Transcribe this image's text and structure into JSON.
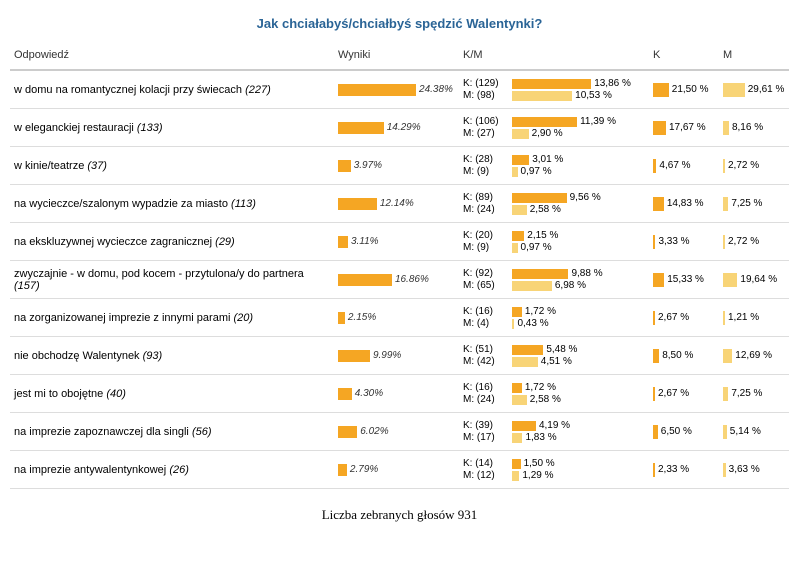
{
  "title": "Jak chciałabyś/chciałbyś spędzić Walentynki?",
  "headers": {
    "answer": "Odpowiedź",
    "results": "Wyniki",
    "km": "K/M",
    "k": "K",
    "m": "M"
  },
  "colors": {
    "bar_main": "#f5a623",
    "bar_k": "#f5a623",
    "bar_m": "#f8d477",
    "title_color": "#2a6496"
  },
  "scale": {
    "main_max": 25,
    "km_max": 14,
    "mini_max": 30
  },
  "rows": [
    {
      "label": "w domu na romantycznej kolacji przy świecach",
      "count": 227,
      "pct": 24.38,
      "k_n": 129,
      "k_pct": 13.86,
      "m_n": 98,
      "m_pct": 10.53,
      "k_col": 21.5,
      "m_col": 29.61
    },
    {
      "label": "w eleganckiej restauracji",
      "count": 133,
      "pct": 14.29,
      "k_n": 106,
      "k_pct": 11.39,
      "m_n": 27,
      "m_pct": 2.9,
      "k_col": 17.67,
      "m_col": 8.16
    },
    {
      "label": "w kinie/teatrze",
      "count": 37,
      "pct": 3.97,
      "k_n": 28,
      "k_pct": 3.01,
      "m_n": 9,
      "m_pct": 0.97,
      "k_col": 4.67,
      "m_col": 2.72
    },
    {
      "label": "na wycieczce/szalonym wypadzie za miasto",
      "count": 113,
      "pct": 12.14,
      "k_n": 89,
      "k_pct": 9.56,
      "m_n": 24,
      "m_pct": 2.58,
      "k_col": 14.83,
      "m_col": 7.25
    },
    {
      "label": "na ekskluzywnej wycieczce zagranicznej",
      "count": 29,
      "pct": 3.11,
      "k_n": 20,
      "k_pct": 2.15,
      "m_n": 9,
      "m_pct": 0.97,
      "k_col": 3.33,
      "m_col": 2.72
    },
    {
      "label": "zwyczajnie - w domu, pod kocem - przytulona/y do partnera",
      "count": 157,
      "pct": 16.86,
      "k_n": 92,
      "k_pct": 9.88,
      "m_n": 65,
      "m_pct": 6.98,
      "k_col": 15.33,
      "m_col": 19.64
    },
    {
      "label": "na zorganizowanej imprezie z innymi parami",
      "count": 20,
      "pct": 2.15,
      "k_n": 16,
      "k_pct": 1.72,
      "m_n": 4,
      "m_pct": 0.43,
      "k_col": 2.67,
      "m_col": 1.21
    },
    {
      "label": "nie obchodzę Walentynek",
      "count": 93,
      "pct": 9.99,
      "k_n": 51,
      "k_pct": 5.48,
      "m_n": 42,
      "m_pct": 4.51,
      "k_col": 8.5,
      "m_col": 12.69
    },
    {
      "label": "jest mi to obojętne",
      "count": 40,
      "pct": 4.3,
      "k_n": 16,
      "k_pct": 1.72,
      "m_n": 24,
      "m_pct": 2.58,
      "k_col": 2.67,
      "m_col": 7.25
    },
    {
      "label": "na imprezie zapoznawczej dla singli",
      "count": 56,
      "pct": 6.02,
      "k_n": 39,
      "k_pct": 4.19,
      "m_n": 17,
      "m_pct": 1.83,
      "k_col": 6.5,
      "m_col": 5.14
    },
    {
      "label": "na imprezie antywalentynkowej",
      "count": 26,
      "pct": 2.79,
      "k_n": 14,
      "k_pct": 1.5,
      "m_n": 12,
      "m_pct": 1.29,
      "k_col": 2.33,
      "m_col": 3.63
    }
  ],
  "footer_prefix": "Liczba zebranych głosów",
  "total_votes": 931
}
